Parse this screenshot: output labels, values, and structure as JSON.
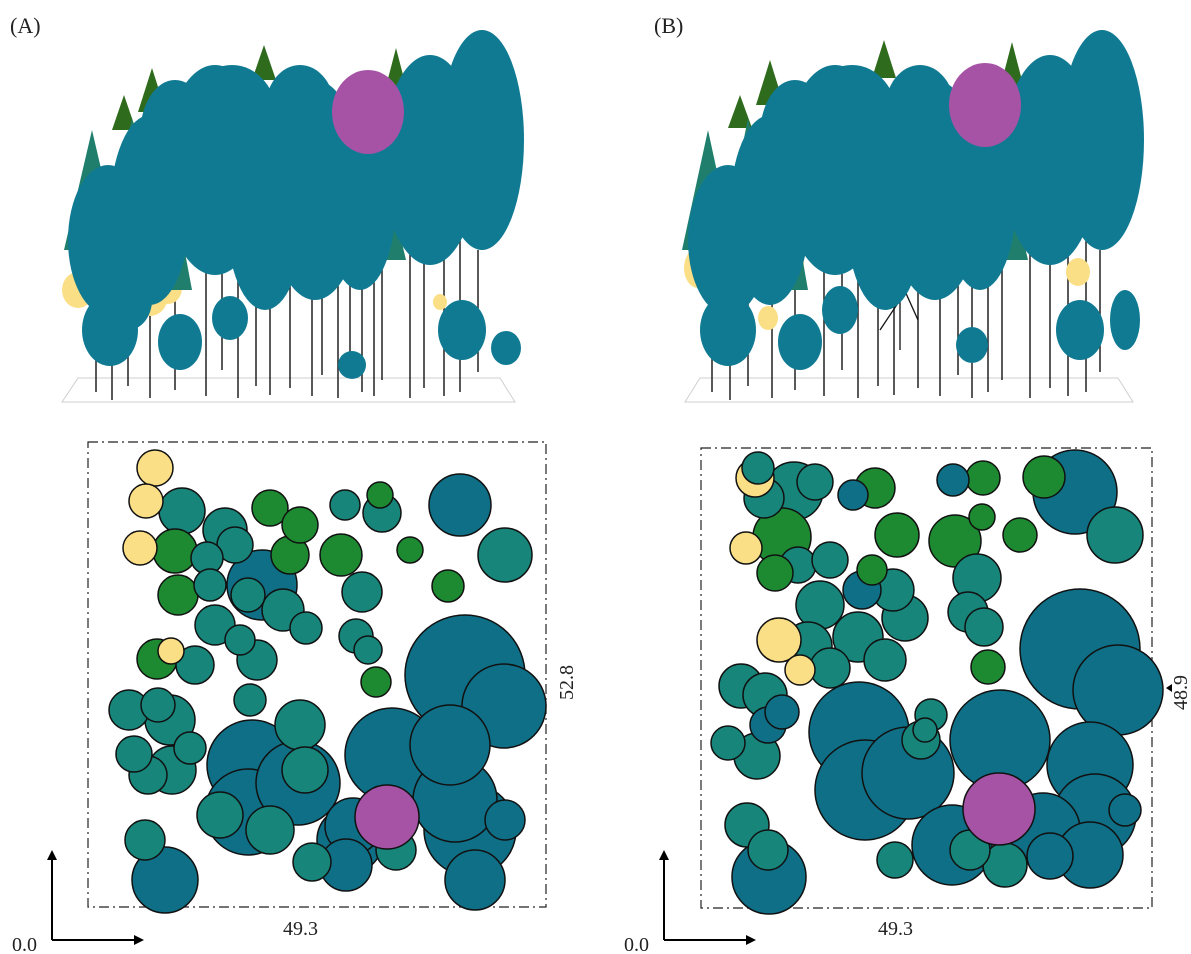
{
  "colors": {
    "blue": "#0f6f86",
    "teal": "#17857a",
    "green": "#1d8a32",
    "yellow": "#fbdf86",
    "magenta": "#a653a6",
    "dark_conifer": "#2f6b1c"
  },
  "panels": [
    {
      "id": "A",
      "letter": "(A)",
      "width_label": "49.3",
      "height_label": "52.8",
      "origin_label": "0.0",
      "crowns": [
        [
          "yellow",
          155,
          468,
          18
        ],
        [
          "yellow",
          146,
          501,
          17
        ],
        [
          "teal",
          182,
          511,
          23
        ],
        [
          "green",
          270,
          508,
          18
        ],
        [
          "teal",
          225,
          530,
          22
        ],
        [
          "green",
          175,
          551,
          22
        ],
        [
          "yellow",
          140,
          548,
          17
        ],
        [
          "green",
          290,
          555,
          19
        ],
        [
          "teal",
          235,
          545,
          18
        ],
        [
          "teal",
          207,
          558,
          16
        ],
        [
          "blue",
          262,
          585,
          35
        ],
        [
          "green",
          300,
          525,
          18
        ],
        [
          "green",
          341,
          555,
          21
        ],
        [
          "green",
          380,
          495,
          13
        ],
        [
          "teal",
          345,
          505,
          15
        ],
        [
          "teal",
          382,
          513,
          19
        ],
        [
          "blue",
          460,
          505,
          31
        ],
        [
          "teal",
          505,
          555,
          27
        ],
        [
          "green",
          410,
          550,
          13
        ],
        [
          "green",
          448,
          586,
          16
        ],
        [
          "teal",
          362,
          592,
          20
        ],
        [
          "green",
          178,
          595,
          20
        ],
        [
          "teal",
          210,
          585,
          16
        ],
        [
          "teal",
          248,
          595,
          17
        ],
        [
          "teal",
          283,
          610,
          21
        ],
        [
          "teal",
          306,
          628,
          16
        ],
        [
          "teal",
          215,
          625,
          20
        ],
        [
          "teal",
          240,
          640,
          15
        ],
        [
          "teal",
          356,
          636,
          17
        ],
        [
          "teal",
          368,
          650,
          14
        ],
        [
          "green",
          376,
          682,
          15
        ],
        [
          "blue",
          465,
          675,
          60
        ],
        [
          "blue",
          504,
          706,
          42
        ],
        [
          "yellow",
          171,
          651,
          13
        ],
        [
          "teal",
          195,
          665,
          19
        ],
        [
          "green",
          157,
          659,
          20
        ],
        [
          "teal",
          257,
          660,
          20
        ],
        [
          "teal",
          250,
          700,
          16
        ],
        [
          "teal",
          129,
          710,
          20
        ],
        [
          "teal",
          170,
          720,
          25
        ],
        [
          "teal",
          158,
          705,
          17
        ],
        [
          "teal",
          134,
          754,
          18
        ],
        [
          "teal",
          148,
          775,
          19
        ],
        [
          "teal",
          172,
          770,
          24
        ],
        [
          "teal",
          190,
          748,
          16
        ],
        [
          "teal",
          300,
          725,
          25
        ],
        [
          "teal",
          305,
          770,
          23
        ],
        [
          "teal",
          220,
          815,
          23
        ],
        [
          "teal",
          270,
          830,
          24
        ],
        [
          "blue",
          252,
          765,
          45
        ],
        [
          "blue",
          248,
          812,
          43
        ],
        [
          "blue",
          298,
          783,
          42
        ],
        [
          "blue",
          392,
          755,
          47
        ],
        [
          "blue",
          450,
          745,
          40
        ],
        [
          "blue",
          455,
          800,
          42
        ],
        [
          "blue",
          470,
          830,
          46
        ],
        [
          "blue",
          350,
          840,
          33
        ],
        [
          "blue",
          353,
          826,
          28
        ],
        [
          "teal",
          145,
          840,
          20
        ],
        [
          "blue",
          165,
          880,
          33
        ],
        [
          "blue",
          475,
          880,
          30
        ],
        [
          "blue",
          505,
          820,
          20
        ],
        [
          "teal",
          312,
          862,
          19
        ],
        [
          "blue",
          346,
          865,
          26
        ],
        [
          "teal",
          396,
          850,
          20
        ],
        [
          "magenta",
          387,
          817,
          32
        ]
      ]
    },
    {
      "id": "B",
      "letter": "(B)",
      "width_label": "49.3",
      "height_label": "48.9",
      "origin_label": "0.0",
      "crowns": [
        [
          "yellow",
          755,
          478,
          19
        ],
        [
          "teal",
          758,
          468,
          16
        ],
        [
          "teal",
          764,
          498,
          20
        ],
        [
          "teal",
          794,
          491,
          29
        ],
        [
          "teal",
          815,
          482,
          18
        ],
        [
          "blue",
          853,
          495,
          15
        ],
        [
          "green",
          875,
          488,
          20
        ],
        [
          "blue",
          953,
          480,
          16
        ],
        [
          "green",
          983,
          478,
          17
        ],
        [
          "green",
          1044,
          477,
          21
        ],
        [
          "blue",
          1075,
          492,
          42
        ],
        [
          "teal",
          1115,
          535,
          28
        ],
        [
          "yellow",
          746,
          548,
          16
        ],
        [
          "green",
          782,
          537,
          29
        ],
        [
          "teal",
          798,
          565,
          18
        ],
        [
          "green",
          897,
          535,
          22
        ],
        [
          "green",
          955,
          541,
          26
        ],
        [
          "green",
          982,
          517,
          13
        ],
        [
          "green",
          1020,
          535,
          17
        ],
        [
          "green",
          872,
          570,
          15
        ],
        [
          "teal",
          830,
          560,
          18
        ],
        [
          "green",
          775,
          573,
          18
        ],
        [
          "teal",
          820,
          605,
          24
        ],
        [
          "teal",
          893,
          590,
          21
        ],
        [
          "teal",
          905,
          618,
          23
        ],
        [
          "blue",
          862,
          590,
          19
        ],
        [
          "teal",
          977,
          578,
          24
        ],
        [
          "teal",
          968,
          612,
          20
        ],
        [
          "teal",
          984,
          627,
          19
        ],
        [
          "yellow",
          779,
          640,
          22
        ],
        [
          "teal",
          808,
          646,
          24
        ],
        [
          "teal",
          858,
          637,
          25
        ],
        [
          "teal",
          885,
          660,
          21
        ],
        [
          "teal",
          830,
          668,
          20
        ],
        [
          "green",
          988,
          667,
          17
        ],
        [
          "blue",
          1080,
          649,
          60
        ],
        [
          "blue",
          1118,
          690,
          45
        ],
        [
          "yellow",
          800,
          670,
          15
        ],
        [
          "teal",
          741,
          686,
          22
        ],
        [
          "teal",
          765,
          695,
          22
        ],
        [
          "blue",
          782,
          712,
          17
        ],
        [
          "blue",
          768,
          725,
          18
        ],
        [
          "teal",
          728,
          743,
          17
        ],
        [
          "teal",
          757,
          756,
          23
        ],
        [
          "teal",
          921,
          740,
          19
        ],
        [
          "teal",
          931,
          715,
          16
        ],
        [
          "teal",
          925,
          730,
          12
        ],
        [
          "blue",
          859,
          732,
          50
        ],
        [
          "blue",
          865,
          790,
          50
        ],
        [
          "blue",
          908,
          773,
          46
        ],
        [
          "blue",
          1000,
          740,
          50
        ],
        [
          "blue",
          1090,
          765,
          43
        ],
        [
          "blue",
          1095,
          815,
          41
        ],
        [
          "blue",
          1090,
          855,
          33
        ],
        [
          "blue",
          952,
          845,
          40
        ],
        [
          "blue",
          1043,
          830,
          37
        ],
        [
          "blue",
          1125,
          810,
          16
        ],
        [
          "teal",
          747,
          825,
          22
        ],
        [
          "teal",
          768,
          850,
          20
        ],
        [
          "blue",
          769,
          877,
          37
        ],
        [
          "teal",
          895,
          860,
          18
        ],
        [
          "teal",
          970,
          850,
          20
        ],
        [
          "teal",
          1005,
          865,
          22
        ],
        [
          "blue",
          1050,
          856,
          23
        ],
        [
          "magenta",
          999,
          809,
          36
        ]
      ]
    }
  ]
}
